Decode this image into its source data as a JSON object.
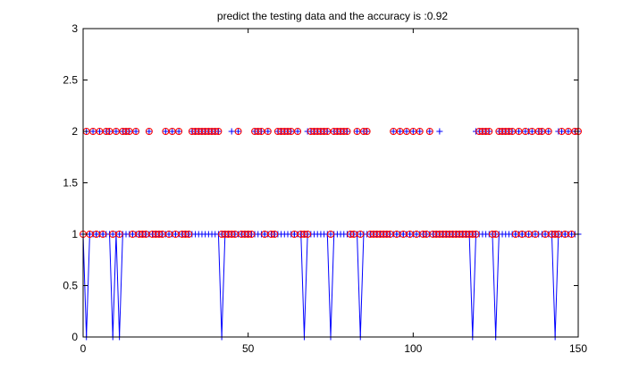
{
  "chart_data": {
    "type": "scatter",
    "title": "predict the testing data and the accuracy is :0.92",
    "xlabel": "",
    "ylabel": "",
    "xlim": [
      0,
      150
    ],
    "ylim": [
      0,
      3
    ],
    "xticks": [
      "0",
      "50",
      "100",
      "150"
    ],
    "yticks": [
      "0",
      "0.5",
      "1",
      "1.5",
      "2",
      "2.5",
      "3"
    ],
    "grid": false,
    "box": true,
    "series": [
      {
        "marker": "+",
        "color": "#0000ff",
        "line": true,
        "values": [
          1,
          0,
          1,
          1,
          1,
          1,
          1,
          1,
          1,
          0,
          1,
          0,
          1,
          1,
          1,
          1,
          1,
          1,
          1,
          1,
          1,
          1,
          1,
          1,
          1,
          1,
          1,
          1,
          1,
          1,
          1,
          1,
          1,
          1,
          1,
          1,
          1,
          1,
          1,
          1,
          1,
          1,
          0,
          1,
          1,
          1,
          1,
          1,
          1,
          1,
          1,
          1,
          1,
          1,
          1,
          1,
          1,
          1,
          1,
          1,
          1,
          1,
          1,
          1,
          1,
          1,
          1,
          0,
          1,
          1,
          1,
          1,
          1,
          1,
          1,
          0,
          1,
          1,
          1,
          1,
          1,
          1,
          1,
          1,
          0,
          1,
          1,
          1,
          1,
          1,
          1,
          1,
          1,
          1,
          1,
          1,
          1,
          1,
          1,
          1,
          1,
          1,
          1,
          1,
          1,
          1,
          1,
          1,
          1,
          1,
          1,
          1,
          1,
          1,
          1,
          1,
          1,
          1,
          0,
          1,
          1,
          1,
          1,
          1,
          1,
          0,
          1,
          1,
          1,
          1,
          1,
          1,
          1,
          1,
          1,
          1,
          1,
          1,
          1,
          1,
          1,
          1,
          1,
          0,
          1,
          1,
          1,
          1,
          1,
          1,
          1
        ]
      },
      {
        "marker": "+",
        "color": "#0000ff",
        "line": false,
        "values": [
          1,
          2,
          1,
          2,
          1,
          2,
          1,
          2,
          2,
          1,
          2,
          1,
          2,
          2,
          2,
          1,
          2,
          1,
          1,
          1,
          2,
          1,
          1,
          1,
          1,
          2,
          1,
          2,
          1,
          2,
          1,
          1,
          1,
          2,
          2,
          2,
          2,
          2,
          2,
          2,
          2,
          2,
          1,
          1,
          1,
          2,
          1,
          2,
          1,
          1,
          1,
          1,
          2,
          2,
          2,
          1,
          2,
          1,
          1,
          2,
          2,
          2,
          2,
          2,
          1,
          2,
          1,
          1,
          2,
          2,
          2,
          2,
          2,
          2,
          2,
          1,
          2,
          2,
          2,
          2,
          2,
          1,
          1,
          2,
          1,
          2,
          2,
          1,
          1,
          1,
          1,
          1,
          1,
          1,
          2,
          1,
          2,
          1,
          2,
          1,
          2,
          1,
          2,
          1,
          1,
          2,
          1,
          1,
          2,
          1,
          1,
          1,
          1,
          1,
          1,
          1,
          1,
          1,
          1,
          2,
          2,
          2,
          2,
          2,
          1,
          1,
          2,
          2,
          2,
          2,
          2,
          1,
          2,
          1,
          2,
          2,
          2,
          1,
          2,
          2,
          1,
          2,
          1,
          1,
          2,
          2,
          1,
          2,
          1,
          2,
          2
        ]
      },
      {
        "marker": "o",
        "color": "#ff0000",
        "line": false,
        "values": [
          1,
          2,
          1,
          2,
          1,
          2,
          1,
          2,
          2,
          1,
          2,
          1,
          2,
          2,
          2,
          1,
          2,
          1,
          1,
          1,
          2,
          1,
          1,
          1,
          1,
          2,
          1,
          2,
          1,
          2,
          1,
          1,
          1,
          2,
          2,
          2,
          2,
          2,
          2,
          2,
          2,
          2,
          1,
          1,
          1,
          1,
          1,
          2,
          1,
          1,
          1,
          1,
          2,
          2,
          2,
          1,
          2,
          1,
          1,
          2,
          2,
          2,
          2,
          2,
          1,
          2,
          1,
          1,
          1,
          2,
          2,
          2,
          2,
          2,
          2,
          1,
          2,
          2,
          2,
          2,
          2,
          1,
          1,
          2,
          1,
          2,
          2,
          1,
          1,
          1,
          1,
          1,
          1,
          1,
          2,
          1,
          2,
          1,
          2,
          1,
          2,
          1,
          2,
          1,
          1,
          2,
          1,
          1,
          1,
          1,
          1,
          1,
          1,
          1,
          1,
          1,
          1,
          1,
          1,
          1,
          2,
          2,
          2,
          2,
          1,
          1,
          2,
          2,
          2,
          2,
          2,
          1,
          2,
          1,
          2,
          1,
          2,
          1,
          2,
          2,
          1,
          2,
          1,
          1,
          1,
          2,
          1,
          2,
          1,
          2,
          2
        ]
      }
    ]
  }
}
